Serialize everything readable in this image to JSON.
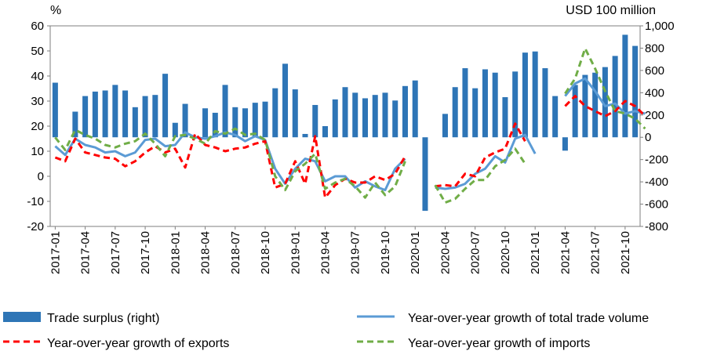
{
  "chart_data": {
    "type": "bar+line",
    "title": "",
    "left_axis_unit": "%",
    "right_axis_unit": "USD 100 million",
    "left_ylim": [
      -20,
      60
    ],
    "left_ticks": [
      -20,
      -10,
      0,
      10,
      20,
      30,
      40,
      50,
      60
    ],
    "right_ylim": [
      -800,
      1000
    ],
    "right_ticks": [
      -800,
      -600,
      -400,
      -200,
      0,
      200,
      400,
      600,
      800,
      1000
    ],
    "right_tick_labels": [
      "-800",
      "-600",
      "-400",
      "-200",
      "0",
      "200",
      "400",
      "600",
      "800",
      "1,000"
    ],
    "grid": false,
    "legend_position": "bottom",
    "x_tick_labels": [
      "2017-01",
      "2017-04",
      "2017-07",
      "2017-10",
      "2018-01",
      "2018-04",
      "2018-07",
      "2018-10",
      "2019-01",
      "2019-04",
      "2019-07",
      "2019-10",
      "2020-01",
      "2020-04",
      "2020-07",
      "2020-10",
      "2021-01",
      "2021-04",
      "2021-07",
      "2021-10"
    ],
    "series": [
      {
        "name": "Trade surplus (right)",
        "type": "bar",
        "axis": "right",
        "color": "#2E75B6",
        "values": [
          490,
          null,
          230,
          370,
          410,
          420,
          470,
          420,
          270,
          370,
          380,
          570,
          130,
          300,
          null,
          260,
          220,
          470,
          270,
          260,
          310,
          320,
          440,
          660,
          430,
          30,
          290,
          100,
          340,
          450,
          400,
          350,
          380,
          400,
          330,
          460,
          510,
          -660,
          null,
          210,
          450,
          620,
          440,
          610,
          580,
          360,
          590,
          760,
          770,
          620,
          370,
          -120,
          470,
          560,
          580,
          630,
          730,
          920,
          820
        ]
      },
      {
        "name": "Year-over-year growth of total trade volume",
        "type": "line",
        "axis": "left",
        "color": "#5B9BD5",
        "dash": "solid",
        "values": [
          12,
          8.5,
          15,
          12.5,
          11.5,
          9.5,
          10,
          8,
          9.5,
          14.5,
          15,
          12,
          12.5,
          17.5,
          15.5,
          15,
          16,
          17.5,
          16.5,
          14,
          16,
          14.5,
          3,
          -3,
          3,
          7,
          6,
          -2,
          0,
          0,
          -4.5,
          -2,
          -4,
          -5.5,
          3,
          7,
          null,
          null,
          -4.5,
          -5,
          -4.5,
          -3,
          1,
          3,
          8,
          5.5,
          15,
          16.5,
          9,
          null,
          null,
          32,
          37,
          39,
          34,
          28,
          29,
          25,
          26,
          25
        ]
      },
      {
        "name": "Year-over-year growth of exports",
        "type": "line",
        "axis": "left",
        "color": "#FF0000",
        "dash": "dashed",
        "values": [
          7.5,
          6,
          15,
          9.5,
          8.5,
          7.5,
          7,
          4,
          6,
          9.5,
          12,
          9.5,
          11,
          3.5,
          17,
          12.5,
          11.5,
          10,
          11,
          11.5,
          13,
          14,
          -4.5,
          -3,
          6,
          -3,
          16,
          -8.5,
          -3.5,
          -1,
          -2.5,
          -2.5,
          0,
          -1.5,
          1,
          8,
          null,
          null,
          -4,
          -3.5,
          -4,
          1,
          0,
          7.5,
          9.5,
          11,
          21,
          14,
          null,
          null,
          null,
          28,
          32,
          28,
          26,
          24,
          26,
          30,
          28,
          24
        ]
      },
      {
        "name": "Year-over-year growth of imports",
        "type": "line",
        "axis": "left",
        "color": "#70AD47",
        "dash": "dashed",
        "values": [
          15.5,
          10.5,
          18.5,
          16.5,
          15,
          12.5,
          11.5,
          13,
          14,
          17,
          13,
          8,
          16,
          16.5,
          15,
          13,
          18,
          17,
          19,
          16.5,
          17,
          14.5,
          0,
          -5.5,
          2,
          5,
          9,
          -5,
          -2.5,
          -1,
          -4,
          -8.5,
          -2.5,
          -7.5,
          -4,
          6,
          null,
          null,
          -3.5,
          -10.5,
          -9,
          -5,
          -1.5,
          -1.5,
          4,
          6.5,
          11,
          5,
          null,
          null,
          null,
          33,
          39,
          51,
          43,
          34,
          26,
          25,
          23,
          19
        ]
      }
    ],
    "legend": [
      "Trade surplus (right)",
      "Year-over-year growth of total trade volume",
      "Year-over-year growth of exports",
      "Year-over-year growth of imports"
    ]
  }
}
